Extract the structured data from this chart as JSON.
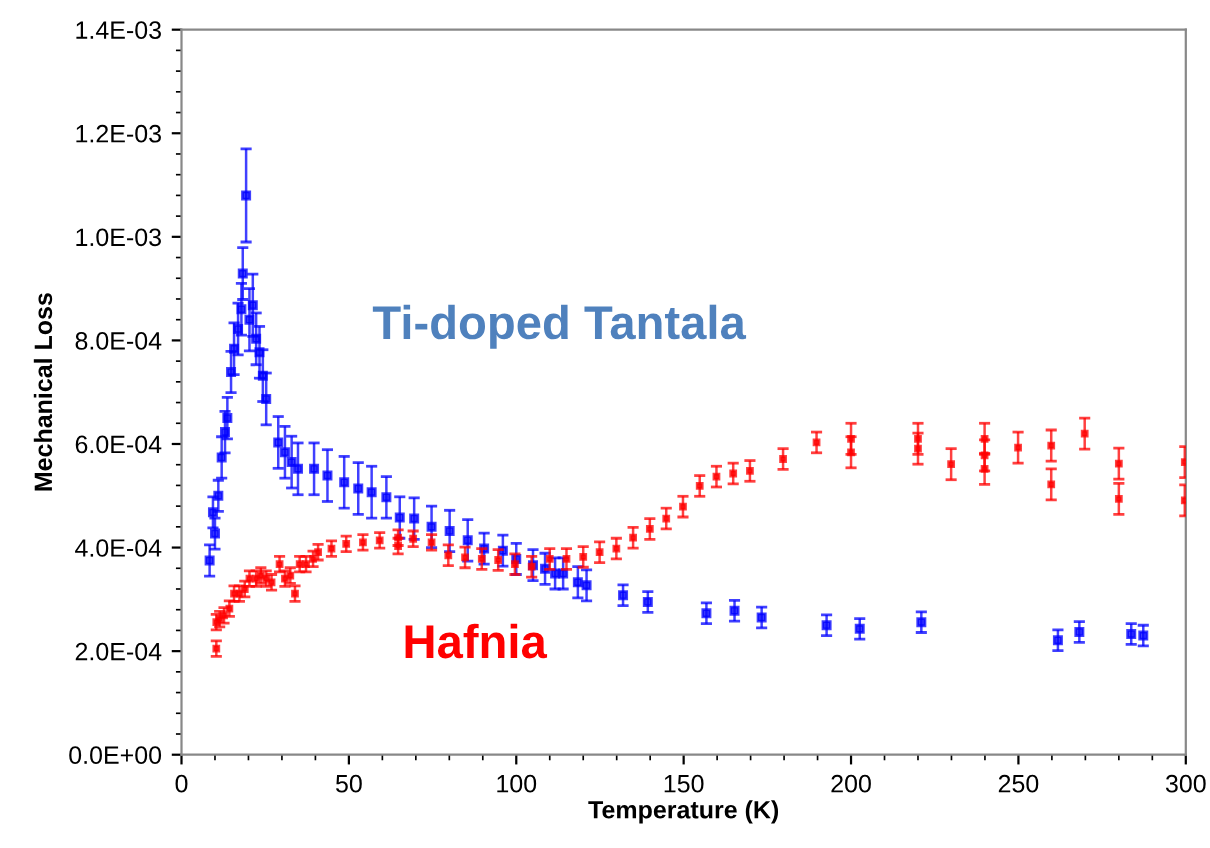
{
  "chart_data": {
    "type": "scatter",
    "xlabel": "Temperature (K)",
    "ylabel": "Mechanical Loss",
    "xlim": [
      0,
      300
    ],
    "ylim": [
      0,
      0.0014
    ],
    "xticks": [
      0,
      50,
      100,
      150,
      200,
      250,
      300
    ],
    "yticks": [
      {
        "value": 0,
        "label": "0.0E+00"
      },
      {
        "value": 0.0002,
        "label": "2.0E-04"
      },
      {
        "value": 0.0004,
        "label": "4.0E-04"
      },
      {
        "value": 0.0006,
        "label": "6.0E-04"
      },
      {
        "value": 0.0008,
        "label": "8.0E-04"
      },
      {
        "value": 0.001,
        "label": "1.0E-03"
      },
      {
        "value": 0.0012,
        "label": "1.2E-03"
      },
      {
        "value": 0.0014,
        "label": "1.4E-03"
      }
    ],
    "grid": false,
    "marker": "square",
    "series": [
      {
        "name": "Ti-doped Tantala",
        "color": "#0000ff",
        "x": [
          8.4,
          9.4,
          10,
          11,
          12,
          13,
          13.7,
          14.8,
          15.7,
          16.9,
          17.9,
          18.3,
          19.3,
          20.3,
          21.3,
          22.3,
          23.3,
          24.3,
          25.3,
          28.9,
          30.9,
          32.9,
          34.8,
          39.6,
          43.6,
          48.6,
          52.8,
          56.8,
          61.2,
          65.2,
          69.5,
          74.7,
          80.1,
          85.5,
          90.4,
          96,
          100,
          105,
          108.6,
          111.6,
          114,
          118.4,
          121,
          131.9,
          139.3,
          156.8,
          165.2,
          173.3,
          192.7,
          202.6,
          221,
          261.8,
          268.2,
          283.7,
          287.3
        ],
        "values": [
          0.000375,
          0.000468,
          0.000427,
          0.0005,
          0.000574,
          0.000623,
          0.00065,
          0.000739,
          0.000784,
          0.000822,
          0.00086,
          0.000929,
          0.00108,
          0.00084,
          0.000868,
          0.000803,
          0.000777,
          0.000732,
          0.000687,
          0.000603,
          0.000584,
          0.000565,
          0.000552,
          0.000552,
          0.000539,
          0.000526,
          0.000514,
          0.000507,
          0.000497,
          0.000458,
          0.000456,
          0.00044,
          0.000432,
          0.000414,
          0.000398,
          0.000394,
          0.000378,
          0.000366,
          0.000359,
          0.00035,
          0.00035,
          0.000333,
          0.000327,
          0.000308,
          0.000295,
          0.000273,
          0.000278,
          0.000265,
          0.00025,
          0.000243,
          0.000256,
          0.000221,
          0.000237,
          0.000233,
          0.00023
        ],
        "errors": [
          3e-05,
          3e-05,
          3e-05,
          3e-05,
          4e-05,
          4e-05,
          4e-05,
          4e-05,
          5e-05,
          5e-05,
          5e-05,
          5e-05,
          9e-05,
          6e-05,
          6e-05,
          5e-05,
          5e-05,
          5e-05,
          5e-05,
          5e-05,
          5e-05,
          5e-05,
          5e-05,
          5e-05,
          5e-05,
          5e-05,
          5e-05,
          5e-05,
          4e-05,
          4e-05,
          4e-05,
          4e-05,
          4e-05,
          4e-05,
          3e-05,
          3e-05,
          3e-05,
          3e-05,
          3e-05,
          3e-05,
          3e-05,
          3e-05,
          3e-05,
          2e-05,
          2e-05,
          2e-05,
          2e-05,
          2e-05,
          2e-05,
          2e-05,
          2e-05,
          2e-05,
          2e-05,
          2e-05,
          2e-05
        ]
      },
      {
        "name": "Hafnia",
        "color": "#ff0000",
        "x": [
          10.4,
          10.4,
          11.4,
          12.7,
          14.3,
          15.7,
          17.3,
          18.9,
          20.3,
          22.3,
          23.7,
          25.3,
          26.9,
          29.3,
          30.9,
          32.5,
          33.9,
          35.3,
          37.2,
          39.3,
          40.8,
          44.8,
          49.2,
          54.2,
          59.2,
          64.7,
          64.7,
          69.2,
          74.7,
          79.7,
          84.7,
          89.7,
          94.6,
          99.6,
          104.6,
          110,
          115,
          120,
          124.9,
          129.9,
          134.9,
          139.9,
          144.8,
          149.8,
          154.8,
          159.8,
          164.8,
          169.8,
          179.7,
          189.7,
          200,
          200,
          220,
          220,
          229.9,
          239.9,
          239.9,
          239.9,
          249.9,
          259.8,
          259.8,
          269.8,
          280,
          280,
          299.7,
          299.7
        ],
        "values": [
          0.000256,
          0.000205,
          0.000262,
          0.000269,
          0.000282,
          0.000311,
          0.000311,
          0.00032,
          0.00034,
          0.00034,
          0.000346,
          0.00034,
          0.000333,
          0.000368,
          0.00034,
          0.000346,
          0.000311,
          0.000368,
          0.000368,
          0.000378,
          0.000391,
          0.000398,
          0.000407,
          0.00041,
          0.000414,
          0.000419,
          0.000403,
          0.000417,
          0.00041,
          0.000385,
          0.000381,
          0.000378,
          0.000376,
          0.000368,
          0.000363,
          0.000378,
          0.000378,
          0.000382,
          0.000391,
          0.000398,
          0.000419,
          0.000436,
          0.000456,
          0.000479,
          0.000519,
          0.000537,
          0.000543,
          0.000548,
          0.000571,
          0.000603,
          0.00061,
          0.000584,
          0.00061,
          0.000591,
          0.000561,
          0.00061,
          0.000578,
          0.000552,
          0.000593,
          0.000597,
          0.000522,
          0.00062,
          0.000562,
          0.000494,
          0.000565,
          0.000491
        ],
        "errors": [
          1.5e-05,
          1.5e-05,
          1.5e-05,
          1.5e-05,
          1.5e-05,
          1.5e-05,
          1.5e-05,
          1.5e-05,
          1.5e-05,
          1.5e-05,
          1.5e-05,
          1.5e-05,
          1.5e-05,
          1.5e-05,
          1.5e-05,
          1.5e-05,
          1.5e-05,
          1.5e-05,
          1.5e-05,
          1.5e-05,
          1.5e-05,
          1.5e-05,
          1.5e-05,
          1.5e-05,
          1.5e-05,
          1.5e-05,
          1.5e-05,
          1.5e-05,
          1.5e-05,
          2e-05,
          2e-05,
          2e-05,
          2e-05,
          2e-05,
          2e-05,
          2e-05,
          2e-05,
          2e-05,
          2e-05,
          2e-05,
          2e-05,
          2e-05,
          2e-05,
          2e-05,
          2e-05,
          2e-05,
          2e-05,
          2e-05,
          2e-05,
          2e-05,
          3e-05,
          3e-05,
          3e-05,
          3e-05,
          3e-05,
          3e-05,
          3e-05,
          3e-05,
          3e-05,
          3e-05,
          3e-05,
          3e-05,
          3e-05,
          3e-05,
          3e-05,
          3e-05
        ]
      }
    ]
  }
}
